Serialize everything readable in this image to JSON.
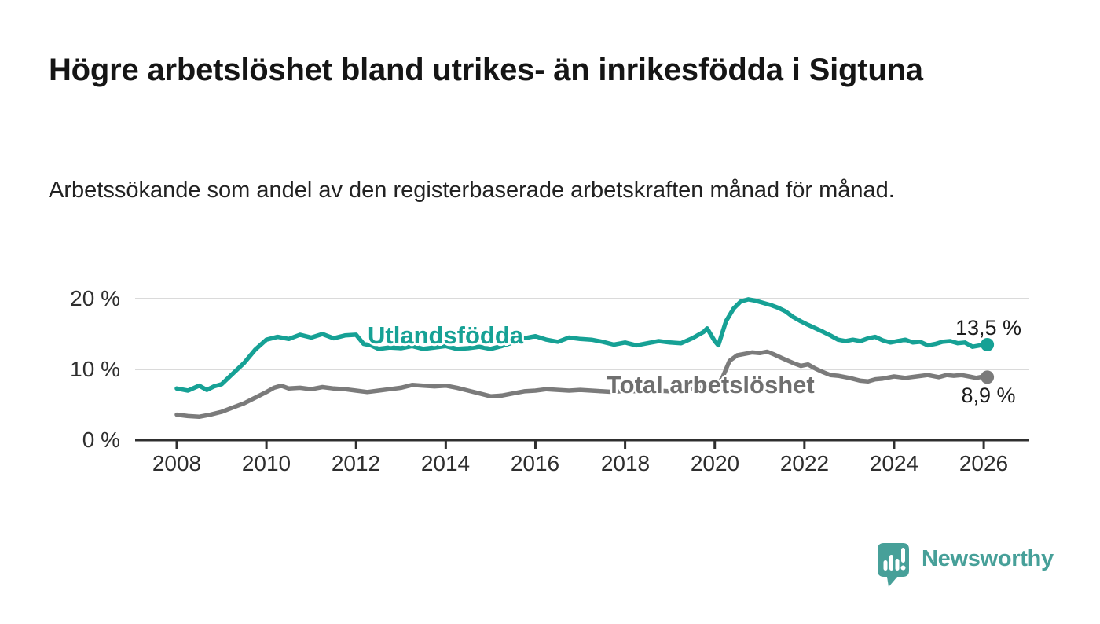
{
  "header": {
    "title": "Högre arbetslöshet bland utrikes- än inrikesfödda i Sigtuna",
    "subtitle": "Arbetssökande som andel av den registerbaserade arbetskraften månad för månad."
  },
  "chart_data": {
    "type": "line",
    "title": "Högre arbetslöshet bland utrikes- än inrikesfödda i Sigtuna",
    "xlabel": "",
    "ylabel": "",
    "grid": "horizontal",
    "legend": "inline-labels",
    "colors": {
      "grid": "#dadada",
      "axis": "#2f2f2f",
      "text": "#2e2e2e"
    },
    "x_axis": {
      "range": [
        2007.1,
        2027.0
      ],
      "ticks": [
        2008,
        2010,
        2012,
        2014,
        2016,
        2018,
        2020,
        2022,
        2024,
        2026
      ],
      "tick_labels": [
        "2008",
        "2010",
        "2012",
        "2014",
        "2016",
        "2018",
        "2020",
        "2022",
        "2024",
        "2026"
      ]
    },
    "y_axis": {
      "range": [
        0,
        22
      ],
      "ticks": [
        0,
        10,
        20
      ],
      "tick_labels": [
        "0 %",
        "10 %",
        "20 %"
      ]
    },
    "series": [
      {
        "id": "utlandsfodda",
        "name": "Utlandsfödda",
        "color": "#16a195",
        "end_value": 13.5,
        "end_label": "13,5 %",
        "x": [
          2008.0,
          2008.25,
          2008.5,
          2008.67,
          2008.83,
          2009.0,
          2009.25,
          2009.5,
          2009.75,
          2010.0,
          2010.25,
          2010.5,
          2010.75,
          2011.0,
          2011.25,
          2011.5,
          2011.75,
          2012.0,
          2012.17,
          2012.33,
          2012.5,
          2012.75,
          2013.0,
          2013.25,
          2013.5,
          2013.75,
          2014.0,
          2014.25,
          2014.5,
          2014.75,
          2015.0,
          2015.25,
          2015.5,
          2015.75,
          2016.0,
          2016.25,
          2016.5,
          2016.75,
          2017.0,
          2017.25,
          2017.5,
          2017.75,
          2018.0,
          2018.25,
          2018.5,
          2018.75,
          2019.0,
          2019.25,
          2019.5,
          2019.75,
          2019.83,
          2020.0,
          2020.08,
          2020.25,
          2020.42,
          2020.58,
          2020.75,
          2020.92,
          2021.08,
          2021.25,
          2021.42,
          2021.58,
          2021.75,
          2021.92,
          2022.08,
          2022.25,
          2022.42,
          2022.58,
          2022.75,
          2022.92,
          2023.08,
          2023.25,
          2023.42,
          2023.58,
          2023.75,
          2023.92,
          2024.08,
          2024.25,
          2024.42,
          2024.58,
          2024.75,
          2024.92,
          2025.08,
          2025.25,
          2025.42,
          2025.58,
          2025.75,
          2025.92,
          2026.08
        ],
        "y": [
          7.3,
          7.0,
          7.7,
          7.1,
          7.6,
          7.9,
          9.4,
          10.9,
          12.8,
          14.2,
          14.6,
          14.3,
          14.9,
          14.5,
          15.0,
          14.4,
          14.8,
          14.9,
          13.6,
          13.4,
          12.9,
          13.1,
          13.0,
          13.3,
          12.9,
          13.1,
          13.3,
          12.9,
          13.0,
          13.2,
          12.9,
          13.3,
          13.8,
          14.4,
          14.7,
          14.2,
          13.9,
          14.5,
          14.3,
          14.2,
          13.9,
          13.5,
          13.8,
          13.4,
          13.7,
          14.0,
          13.8,
          13.7,
          14.4,
          15.3,
          15.8,
          14.0,
          13.4,
          16.8,
          18.6,
          19.6,
          19.9,
          19.7,
          19.4,
          19.1,
          18.7,
          18.2,
          17.4,
          16.8,
          16.3,
          15.8,
          15.3,
          14.8,
          14.2,
          14.0,
          14.2,
          14.0,
          14.4,
          14.6,
          14.1,
          13.8,
          14.0,
          14.2,
          13.8,
          13.9,
          13.4,
          13.6,
          13.9,
          14.0,
          13.7,
          13.8,
          13.2,
          13.4,
          13.5
        ]
      },
      {
        "id": "total",
        "name": "Total arbetslöshet",
        "color": "#7b7b7b",
        "end_value": 8.9,
        "end_label": "8,9 %",
        "x": [
          2008.0,
          2008.25,
          2008.5,
          2008.75,
          2009.0,
          2009.25,
          2009.5,
          2009.75,
          2010.0,
          2010.17,
          2010.33,
          2010.5,
          2010.75,
          2011.0,
          2011.25,
          2011.5,
          2011.75,
          2012.0,
          2012.25,
          2012.5,
          2012.75,
          2013.0,
          2013.25,
          2013.5,
          2013.75,
          2014.0,
          2014.25,
          2014.5,
          2014.75,
          2015.0,
          2015.25,
          2015.5,
          2015.75,
          2016.0,
          2016.25,
          2016.5,
          2016.75,
          2017.0,
          2017.25,
          2017.5,
          2017.75,
          2018.0,
          2018.25,
          2018.5,
          2018.75,
          2019.0,
          2019.25,
          2019.5,
          2019.75,
          2020.0,
          2020.17,
          2020.33,
          2020.5,
          2020.67,
          2020.83,
          2021.0,
          2021.17,
          2021.33,
          2021.5,
          2021.75,
          2021.92,
          2022.08,
          2022.25,
          2022.42,
          2022.58,
          2022.75,
          2023.0,
          2023.25,
          2023.42,
          2023.58,
          2023.75,
          2024.0,
          2024.25,
          2024.5,
          2024.75,
          2025.0,
          2025.17,
          2025.33,
          2025.5,
          2025.67,
          2025.83,
          2026.0,
          2026.08
        ],
        "y": [
          3.6,
          3.4,
          3.3,
          3.6,
          4.0,
          4.6,
          5.2,
          6.0,
          6.8,
          7.4,
          7.7,
          7.3,
          7.4,
          7.2,
          7.5,
          7.3,
          7.2,
          7.0,
          6.8,
          7.0,
          7.2,
          7.4,
          7.8,
          7.7,
          7.6,
          7.7,
          7.4,
          7.0,
          6.6,
          6.2,
          6.3,
          6.6,
          6.9,
          7.0,
          7.2,
          7.1,
          7.0,
          7.1,
          7.0,
          6.9,
          6.8,
          7.0,
          6.9,
          6.8,
          7.0,
          6.9,
          7.0,
          7.2,
          7.5,
          7.3,
          8.8,
          11.2,
          12.0,
          12.2,
          12.4,
          12.3,
          12.5,
          12.1,
          11.6,
          10.9,
          10.5,
          10.7,
          10.1,
          9.6,
          9.2,
          9.1,
          8.8,
          8.4,
          8.3,
          8.6,
          8.7,
          9.0,
          8.8,
          9.0,
          9.2,
          8.9,
          9.2,
          9.1,
          9.2,
          9.0,
          8.8,
          9.0,
          8.9
        ]
      }
    ]
  },
  "footer": {
    "brand": "Newsworthy",
    "brand_color": "#47a099"
  }
}
